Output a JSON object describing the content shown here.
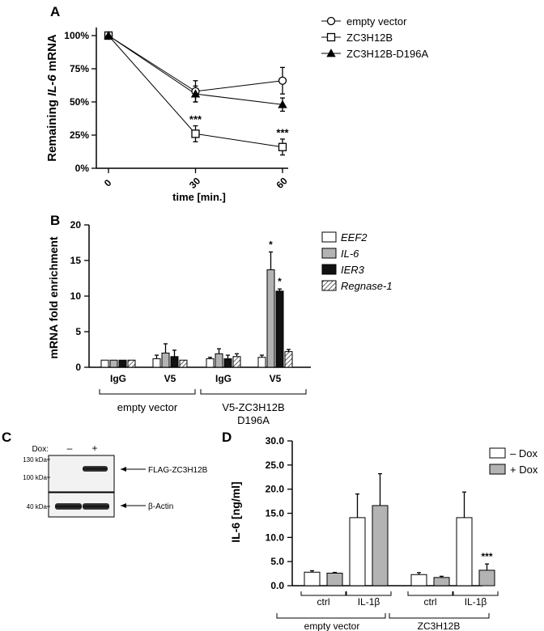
{
  "panels": {
    "a": "A",
    "b": "B",
    "c": "C",
    "d": "D"
  },
  "chart_data": [
    {
      "id": "A",
      "type": "line",
      "ylabel_prefix": "Remaining ",
      "ylabel_italic": "IL-6",
      "ylabel_suffix": " mRNA",
      "xlabel": "time [min.]",
      "x_ticks": [
        "0",
        "30",
        "60"
      ],
      "x": [
        0,
        30,
        60
      ],
      "y_ticks": [
        "0%",
        "25%",
        "50%",
        "75%",
        "100%"
      ],
      "ylim": [
        0,
        100
      ],
      "series": [
        {
          "name": "empty vector",
          "marker": "circle",
          "values": [
            100,
            58,
            66
          ],
          "errors": [
            0,
            8,
            10
          ]
        },
        {
          "name": "ZC3H12B",
          "marker": "square",
          "values": [
            100,
            26,
            16
          ],
          "errors": [
            0,
            6,
            6
          ]
        },
        {
          "name": "ZC3H12B-D196A",
          "marker": "triangle",
          "values": [
            100,
            56,
            48
          ],
          "errors": [
            0,
            6,
            5
          ]
        }
      ],
      "annotations": [
        {
          "x": 30,
          "y": 34,
          "text": "***"
        },
        {
          "x": 60,
          "y": 24,
          "text": "***"
        }
      ]
    },
    {
      "id": "B",
      "type": "bar",
      "ylabel": "mRNA fold enrichment",
      "y_ticks": [
        "0",
        "5",
        "10",
        "15",
        "20"
      ],
      "ylim": [
        0,
        20
      ],
      "groups": [
        "IgG",
        "V5",
        "IgG",
        "V5"
      ],
      "bracket_labels": [
        "empty vector",
        "V5-ZC3H12B",
        "D196A"
      ],
      "series": [
        {
          "name": "EEF2",
          "style": "white",
          "values": [
            1.0,
            1.2,
            1.2,
            1.4
          ],
          "errors": [
            0.0,
            0.5,
            0.2,
            0.3
          ]
        },
        {
          "name": "IL-6",
          "style": "gray",
          "values": [
            1.0,
            2.0,
            1.9,
            13.7
          ],
          "errors": [
            0.0,
            1.3,
            0.7,
            2.5
          ]
        },
        {
          "name": "IER3",
          "style": "black",
          "values": [
            1.0,
            1.5,
            1.2,
            10.7
          ],
          "errors": [
            0.0,
            0.9,
            0.5,
            0.3
          ]
        },
        {
          "name": "Regnase-1",
          "style": "hatched",
          "values": [
            1.0,
            1.0,
            1.5,
            2.2
          ],
          "errors": [
            0.0,
            0.0,
            0.4,
            0.3
          ]
        }
      ],
      "annotations": [
        {
          "group": 3,
          "series": 1,
          "text": "*"
        },
        {
          "group": 3,
          "series": 2,
          "text": "*"
        }
      ]
    },
    {
      "id": "D",
      "type": "bar",
      "ylabel": "IL-6 [ng/ml]",
      "y_ticks": [
        "0.0",
        "5.0",
        "10.0",
        "15.0",
        "20.0",
        "25.0",
        "30.0"
      ],
      "ylim": [
        0,
        30
      ],
      "groups": [
        "ctrl",
        "IL-1β",
        "ctrl",
        "IL-1β"
      ],
      "bracket_labels": [
        "empty vector",
        "ZC3H12B"
      ],
      "series": [
        {
          "name": "– Dox",
          "style": "white",
          "values": [
            2.8,
            14.1,
            2.3,
            14.1
          ],
          "errors": [
            0.3,
            4.9,
            0.4,
            5.3
          ]
        },
        {
          "name": "+ Dox",
          "style": "gray",
          "values": [
            2.6,
            16.6,
            1.7,
            3.2
          ],
          "errors": [
            0.15,
            6.6,
            0.25,
            1.3
          ]
        }
      ],
      "annotations": [
        {
          "group": 3,
          "series": 1,
          "text": "***"
        }
      ]
    }
  ],
  "blot": {
    "dox_label": "Dox:",
    "lanes": [
      "–",
      "+"
    ],
    "markers": [
      "130 kDa",
      "100 kDa",
      "40 kDa"
    ],
    "band_labels": [
      "FLAG-ZC3H12B",
      "β-Actin"
    ]
  }
}
